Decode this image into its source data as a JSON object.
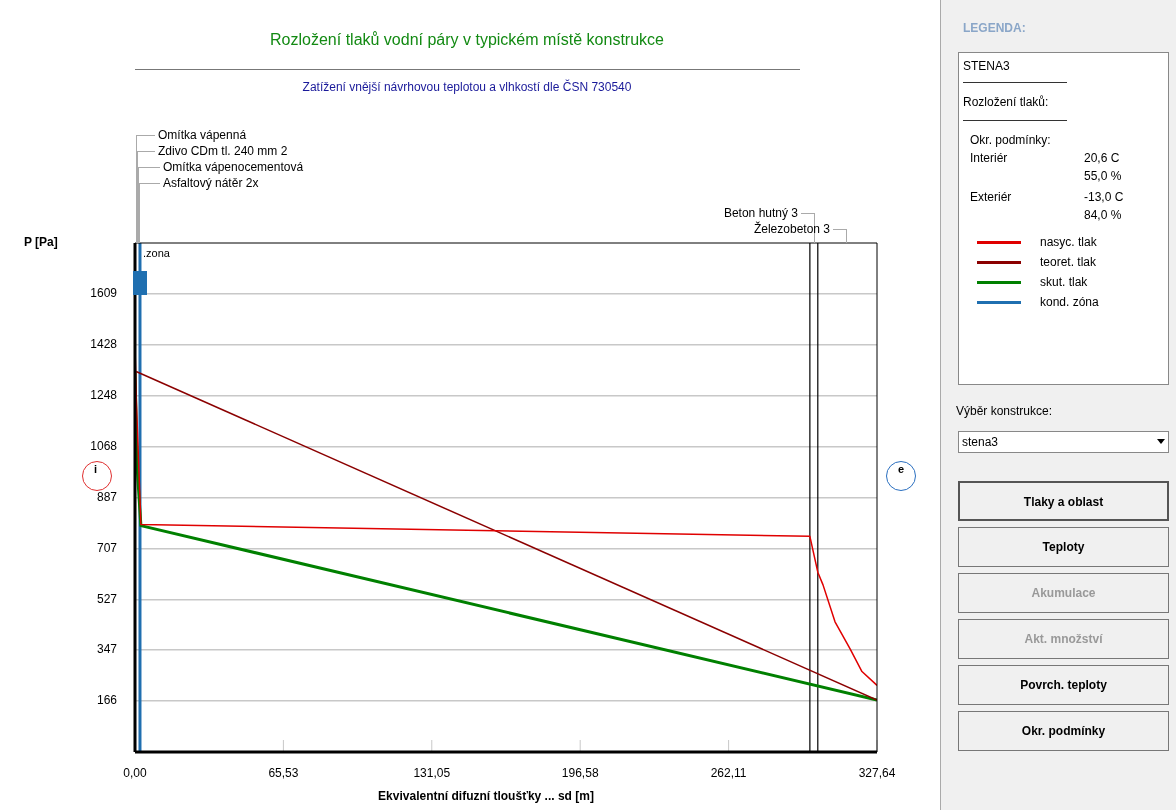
{
  "chart_data": [
    {
      "type": "line",
      "title": "Rozložení tlaků vodní páry v typickém místě konstrukce",
      "subtitle": "Zatížení vnější návrhovou teplotou a vlhkostí dle ČSN 730540",
      "xlabel": "Ekvivalentní difuzní tloušťky ... sd [m]",
      "ylabel": "P [Pa]",
      "xlim": [
        0,
        327.64
      ],
      "ylim": [
        -14,
        1789
      ],
      "xticks": [
        {
          "value": 0,
          "label": "0,00"
        },
        {
          "value": 65.53,
          "label": "65,53"
        },
        {
          "value": 131.05,
          "label": "131,05"
        },
        {
          "value": 196.58,
          "label": "196,58"
        },
        {
          "value": 262.11,
          "label": "262,11"
        },
        {
          "value": 327.64,
          "label": "327,64"
        }
      ],
      "yticks": [
        166,
        347,
        527,
        707,
        887,
        1068,
        1248,
        1428,
        1609
      ],
      "grid": "y",
      "legend": "right",
      "marker": "none",
      "line_style": "solid",
      "series": [
        {
          "name": "nasyc. tlak",
          "color": "#e00000",
          "x": [
            0,
            0.6,
            2.6,
            298.0,
            301.5,
            303.8,
            309.1,
            315.7,
            321.0,
            327.64
          ],
          "values": [
            1422,
            1228,
            792,
            750,
            623,
            578,
            447,
            352,
            271,
            222
          ]
        },
        {
          "name": "teoret. tlak",
          "color": "#8b0000",
          "x": [
            0.5,
            327.64
          ],
          "values": [
            1334,
            170
          ]
        },
        {
          "name": "skut. tlak",
          "color": "#008000",
          "x": [
            0,
            0.9,
            2.6,
            327.64
          ],
          "values": [
            1334,
            1000,
            788,
            170
          ]
        },
        {
          "name": "kond. zóna",
          "color": "#1f6fb0",
          "x": [
            2.2,
            2.2
          ],
          "values": [
            -14,
            1789
          ]
        }
      ],
      "ref_lines": [
        {
          "axis": "x",
          "value": 298.0,
          "color": "#000000"
        },
        {
          "axis": "x",
          "value": 301.5,
          "color": "#000000"
        }
      ],
      "annotations": [
        "Omítka vápenná",
        "Zdivo CDm tl. 240 mm 2",
        "Omítka vápenocementová",
        "Asfaltový nátěr 2x",
        "Beton hutný 3",
        "Železobeton 3",
        "i",
        "e",
        {
          "text": ".zona",
          "x": 2.2,
          "y": 1750
        }
      ]
    },
    {
      "type": "other",
      "title": "LEGENDA:",
      "annotations": [
        "STENA3",
        "Rozložení tlaků:",
        "Okr. podmínky:",
        "Interiér",
        "20,6 C",
        "55,0 %",
        "Exteriér",
        "-13,0 C",
        "84,0 %",
        "Výběr konstrukce:",
        "stena3",
        "Tlaky a oblast",
        "Teploty",
        "Akumulace",
        "Akt. množství",
        "Povrch. teploty",
        "Okr. podmínky"
      ]
    }
  ]
}
